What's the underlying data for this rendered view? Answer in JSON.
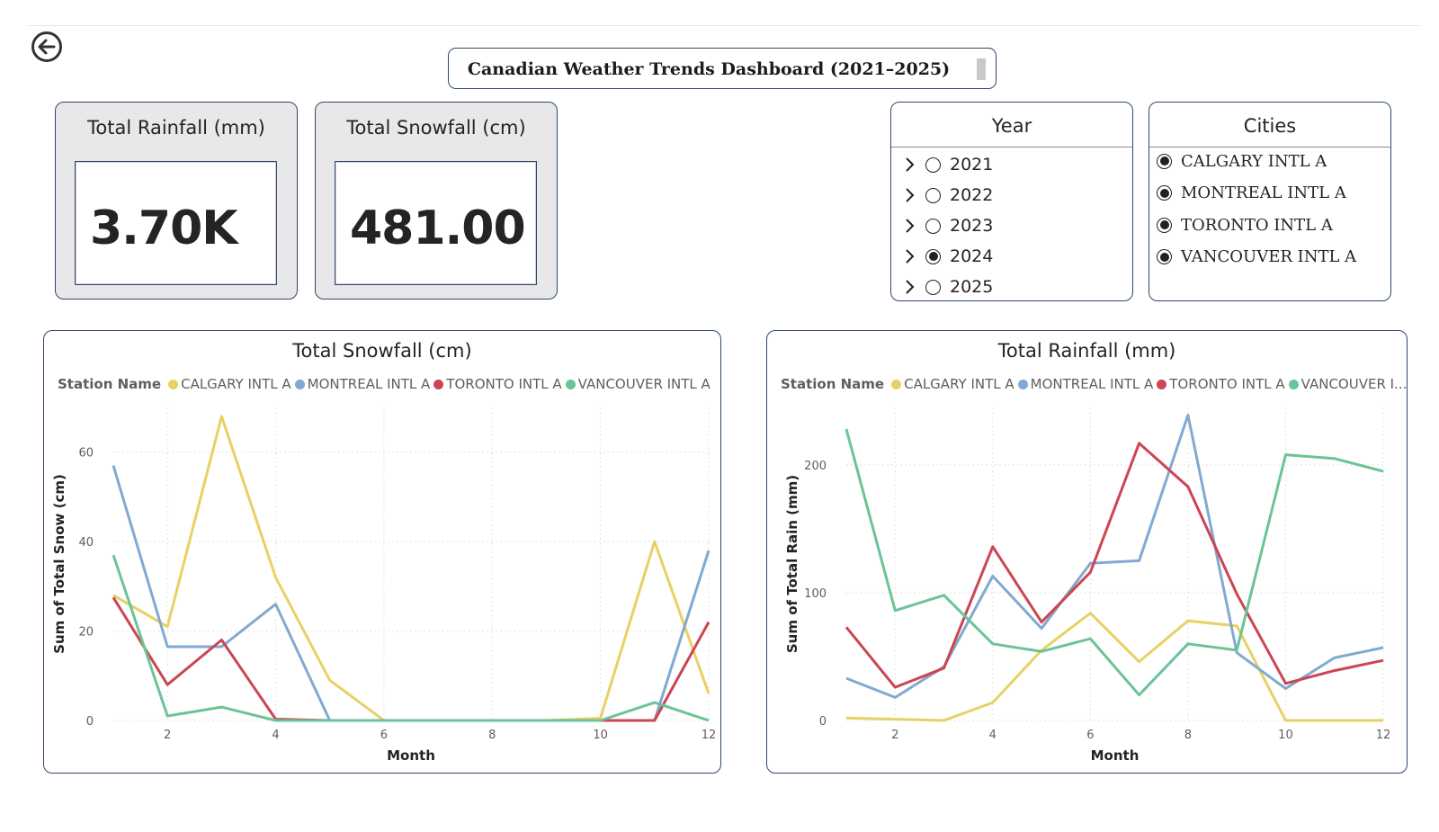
{
  "header": {
    "title": "Canadian Weather Trends Dashboard (2021–2025)",
    "back_icon": "arrow-left-circle-icon"
  },
  "cards": {
    "rainfall": {
      "title": "Total Rainfall (mm)",
      "value": "3.70K"
    },
    "snowfall": {
      "title": "Total Snowfall (cm)",
      "value": "481.00"
    }
  },
  "year_slicer": {
    "title": "Year",
    "items": [
      {
        "label": "2021",
        "selected": false
      },
      {
        "label": "2022",
        "selected": false
      },
      {
        "label": "2023",
        "selected": false
      },
      {
        "label": "2024",
        "selected": true
      },
      {
        "label": "2025",
        "selected": false
      }
    ]
  },
  "city_slicer": {
    "title": "Cities",
    "items": [
      {
        "label": "CALGARY INTL A",
        "selected": true
      },
      {
        "label": "MONTREAL INTL A",
        "selected": true
      },
      {
        "label": "TORONTO INTL A",
        "selected": true
      },
      {
        "label": "VANCOUVER INTL A",
        "selected": true
      }
    ]
  },
  "colors": {
    "border": "#2d4a6b",
    "calgary": "#e8d164",
    "montreal": "#82a9d1",
    "toronto": "#cc4552",
    "vancouver": "#6ac497"
  },
  "chart_data": [
    {
      "type": "line",
      "title": "Total Snowfall (cm)",
      "legend_title": "Station Name",
      "legend_labels": [
        "CALGARY INTL A",
        "MONTREAL INTL A",
        "TORONTO INTL A",
        "VANCOUVER INTL A"
      ],
      "xlabel": "Month",
      "ylabel": "Sum of Total Snow (cm)",
      "xlim": [
        1,
        12
      ],
      "ylim": [
        0,
        70
      ],
      "xticks": [
        2,
        4,
        6,
        8,
        10,
        12
      ],
      "yticks": [
        0,
        20,
        40,
        60
      ],
      "grid": true,
      "legend_position": "top-left",
      "x": [
        1,
        2,
        3,
        4,
        5,
        6,
        7,
        8,
        9,
        10,
        11,
        12
      ],
      "series": [
        {
          "name": "CALGARY INTL A",
          "color": "#e8d164",
          "values": [
            28,
            21,
            68,
            32,
            9,
            0,
            0,
            0,
            0,
            0.5,
            40,
            6
          ]
        },
        {
          "name": "MONTREAL INTL A",
          "color": "#82a9d1",
          "values": [
            57,
            16.5,
            16.5,
            26,
            0,
            0,
            0,
            0,
            0,
            0,
            0,
            38
          ]
        },
        {
          "name": "TORONTO INTL A",
          "color": "#cc4552",
          "values": [
            27.5,
            8,
            18,
            0.3,
            0,
            0,
            0,
            0,
            0,
            0,
            0,
            22
          ]
        },
        {
          "name": "VANCOUVER INTL A",
          "color": "#6ac497",
          "values": [
            37,
            1,
            3,
            0,
            0,
            0,
            0,
            0,
            0,
            0,
            4,
            0
          ]
        }
      ]
    },
    {
      "type": "line",
      "title": "Total Rainfall (mm)",
      "legend_title": "Station Name",
      "legend_labels": [
        "CALGARY INTL A",
        "MONTREAL INTL A",
        "TORONTO INTL A",
        "VANCOUVER I..."
      ],
      "xlabel": "Month",
      "ylabel": "Sum of Total Rain (mm)",
      "xlim": [
        1,
        12
      ],
      "ylim": [
        0,
        245
      ],
      "xticks": [
        2,
        4,
        6,
        8,
        10,
        12
      ],
      "yticks": [
        0,
        100,
        200
      ],
      "grid": true,
      "legend_position": "top-left",
      "x": [
        1,
        2,
        3,
        4,
        5,
        6,
        7,
        8,
        9,
        10,
        11,
        12
      ],
      "series": [
        {
          "name": "CALGARY INTL A",
          "color": "#e8d164",
          "values": [
            2,
            1,
            0,
            14,
            55,
            84,
            46,
            78,
            74,
            0,
            0,
            0
          ]
        },
        {
          "name": "MONTREAL INTL A",
          "color": "#82a9d1",
          "values": [
            33,
            18,
            42,
            113,
            72,
            123,
            125,
            239,
            53,
            25,
            49,
            57
          ]
        },
        {
          "name": "TORONTO INTL A",
          "color": "#cc4552",
          "values": [
            73,
            26,
            41,
            136,
            77,
            116,
            217,
            183,
            99,
            29,
            39,
            47
          ]
        },
        {
          "name": "VANCOUVER INTL A",
          "color": "#6ac497",
          "values": [
            228,
            86,
            98,
            60,
            54,
            64,
            20,
            60,
            55,
            208,
            205,
            195
          ]
        }
      ]
    }
  ]
}
